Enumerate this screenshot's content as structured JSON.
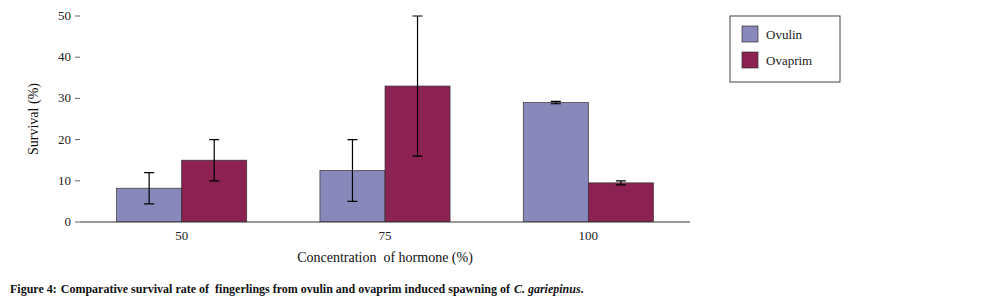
{
  "chart_data": {
    "type": "bar",
    "categories": [
      "50",
      "75",
      "100"
    ],
    "series": [
      {
        "name": "Ovulin",
        "color": "#8888bb",
        "values": [
          8.2,
          12.5,
          29.0
        ],
        "errors": [
          3.8,
          7.5,
          0.3
        ]
      },
      {
        "name": "Ovaprim",
        "color": "#8B2252",
        "values": [
          15.0,
          33.0,
          9.5
        ],
        "errors": [
          5.0,
          17.0,
          0.5
        ]
      }
    ],
    "ylim": [
      0,
      50
    ],
    "yticks": [
      0,
      10,
      20,
      30,
      40,
      50
    ],
    "x_label": "Concentration  of hormone (%)",
    "y_label": "Survival (%)",
    "annotations": [
      "Figure 4:",
      "Comparative survival rate of  fingerlings from ovulin and ovaprim induced spawning of",
      "C. gariepinus",
      "."
    ],
    "legend": "right",
    "grid": false
  }
}
